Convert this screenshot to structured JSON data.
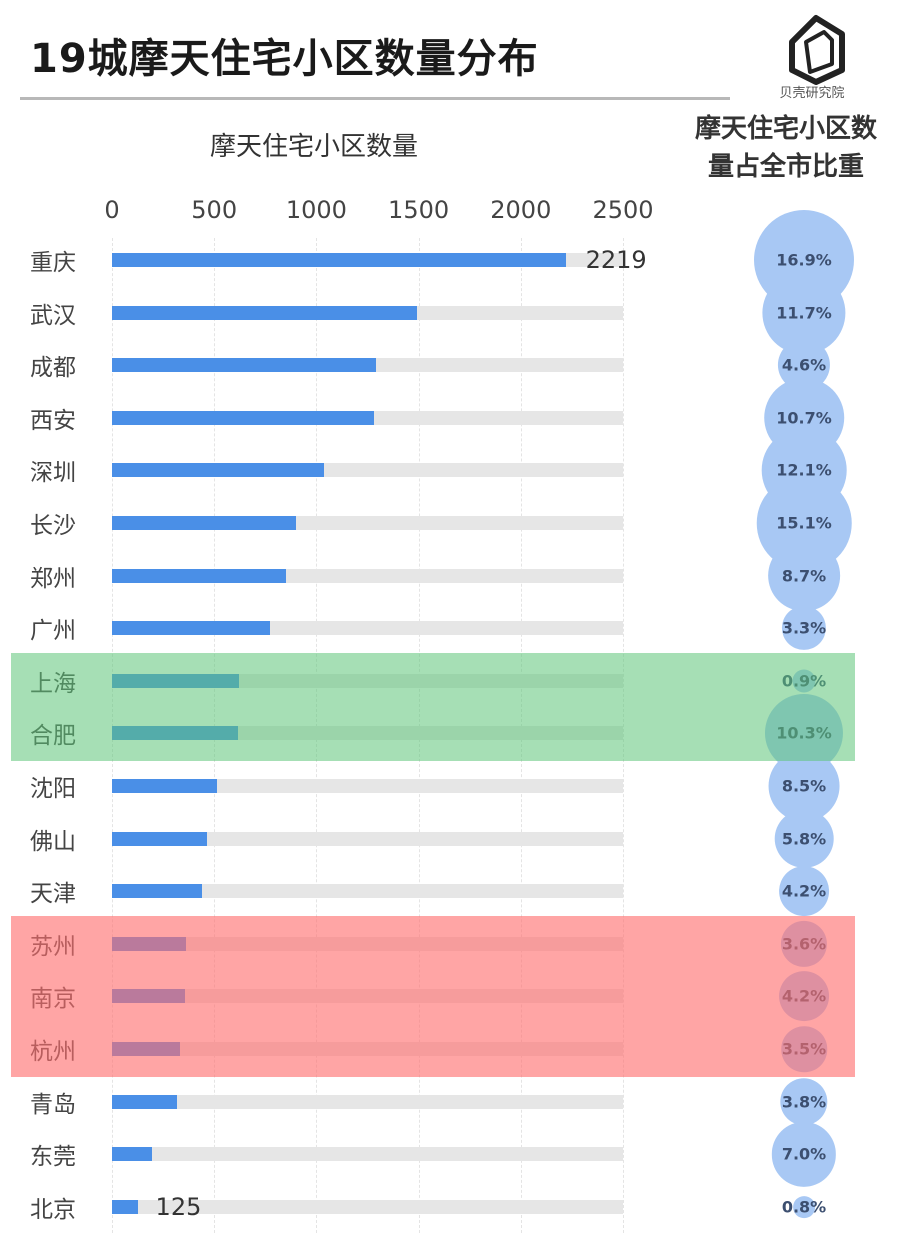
{
  "header": {
    "title": "19城摩天住宅小区数量分布",
    "logo_text": "贝壳研究院",
    "left_subtitle": "摩天住宅小区数量",
    "right_subtitle_line1": "摩天住宅小区数",
    "right_subtitle_line2": "量占全市比重"
  },
  "axis": {
    "ticks": [
      "0",
      "500",
      "1000",
      "1500",
      "2000",
      "2500"
    ]
  },
  "colors": {
    "bar": "#4a8fe7",
    "track": "#e6e6e6",
    "bubble": "#a8c8f4",
    "highlight_green": "#9fdcae",
    "highlight_red": "#ffa3a3"
  },
  "highlights": [
    {
      "color": "green",
      "cities": [
        "上海",
        "合肥"
      ]
    },
    {
      "color": "red",
      "cities": [
        "苏州",
        "南京",
        "杭州"
      ]
    }
  ],
  "chart_data": [
    {
      "type": "bar",
      "title": "摩天住宅小区数量",
      "orientation": "horizontal",
      "categories": [
        "重庆",
        "武汉",
        "成都",
        "西安",
        "深圳",
        "长沙",
        "郑州",
        "广州",
        "上海",
        "合肥",
        "沈阳",
        "佛山",
        "天津",
        "苏州",
        "南京",
        "杭州",
        "青岛",
        "东莞",
        "北京"
      ],
      "values": [
        2219,
        1490,
        1294,
        1284,
        1039,
        902,
        853,
        771,
        623,
        617,
        514,
        466,
        441,
        363,
        358,
        334,
        318,
        197,
        125
      ],
      "data_labels": {
        "重庆": "2219",
        "北京": "125"
      },
      "xlim": [
        0,
        2500
      ],
      "xticks": [
        0,
        500,
        1000,
        1500,
        2000,
        2500
      ],
      "grid": true,
      "gridline_style": "dashed vertical"
    },
    {
      "type": "bubble",
      "title": "摩天住宅小区数量占全市比重",
      "categories": [
        "重庆",
        "武汉",
        "成都",
        "西安",
        "深圳",
        "长沙",
        "郑州",
        "广州",
        "上海",
        "合肥",
        "沈阳",
        "佛山",
        "天津",
        "苏州",
        "南京",
        "杭州",
        "青岛",
        "东莞",
        "北京"
      ],
      "values": [
        16.9,
        11.7,
        4.6,
        10.7,
        12.1,
        15.1,
        8.7,
        3.3,
        0.9,
        10.3,
        8.5,
        5.8,
        4.2,
        3.6,
        4.2,
        3.5,
        3.8,
        7.0,
        0.8
      ],
      "labels": [
        "16.9%",
        "11.7%",
        "4.6%",
        "10.7%",
        "12.1%",
        "15.1%",
        "8.7%",
        "3.3%",
        "0.9%",
        "10.3%",
        "8.5%",
        "5.8%",
        "4.2%",
        "3.6%",
        "4.2%",
        "3.5%",
        "3.8%",
        "7.0%",
        "0.8%"
      ],
      "unit": "%"
    }
  ]
}
